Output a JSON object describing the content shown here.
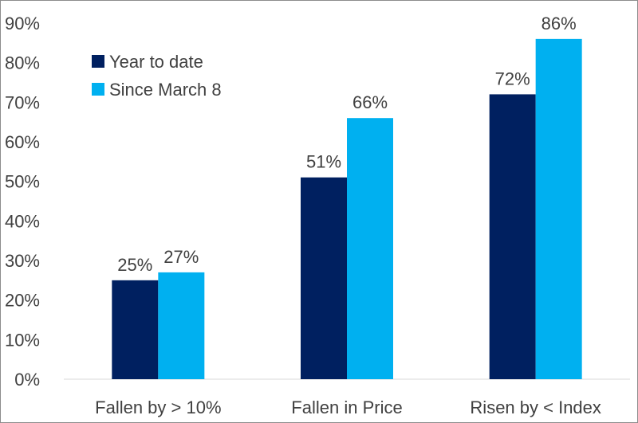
{
  "chart_data": {
    "type": "bar",
    "categories": [
      "Fallen by > 10%",
      "Fallen in Price",
      "Risen by < Index"
    ],
    "series": [
      {
        "name": "Year to date",
        "values": [
          25,
          51,
          72
        ],
        "labels": [
          "25%",
          "51%",
          "72%"
        ],
        "color": "#002060"
      },
      {
        "name": "Since March 8",
        "values": [
          27,
          66,
          86
        ],
        "labels": [
          "27%",
          "66%",
          "86%"
        ],
        "color": "#00B0F0"
      }
    ],
    "ylim": [
      0,
      90
    ],
    "yticks": [
      0,
      10,
      20,
      30,
      40,
      50,
      60,
      70,
      80,
      90
    ],
    "ytick_labels": [
      "0%",
      "10%",
      "20%",
      "30%",
      "40%",
      "50%",
      "60%",
      "70%",
      "80%",
      "90%"
    ],
    "legend_position": "top-left",
    "grid": false
  }
}
